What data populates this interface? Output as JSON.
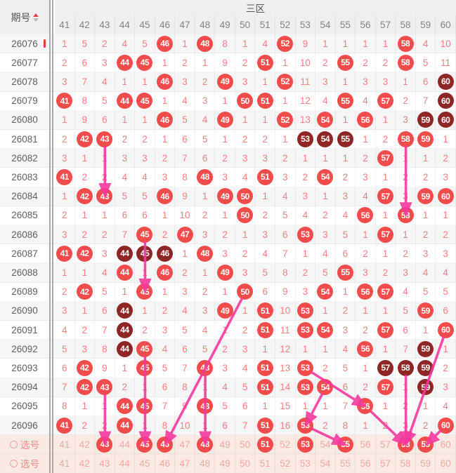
{
  "title": "三区",
  "left_header": "期号",
  "select_label": "选号",
  "columns": [
    41,
    42,
    43,
    44,
    45,
    46,
    47,
    48,
    49,
    50,
    51,
    52,
    53,
    54,
    55,
    56,
    57,
    58,
    59,
    60
  ],
  "legend": {
    "cell_encoding": "number = miss count, 'b' = drawn ball (bright red), 'd' = drawn ball (dark maroon), 0 = plain selectable number"
  },
  "colors": {
    "ball_bright": "#f24b4b",
    "ball_dark": "#8e2626",
    "miss_text": "#f58080",
    "select_row_bg": "#fbe9e3",
    "select_num_text": "#f3a7a2",
    "arrow": "#f5399f",
    "header_bg": "#efefef",
    "sort_active": "#e04040"
  },
  "chart_data": {
    "type": "table",
    "title": "三区",
    "x_columns": [
      41,
      42,
      43,
      44,
      45,
      46,
      47,
      48,
      49,
      50,
      51,
      52,
      53,
      54,
      55,
      56,
      57,
      58,
      59,
      60
    ],
    "rows": [
      {
        "period": "26076",
        "cells": [
          1,
          5,
          2,
          4,
          5,
          "b",
          1,
          "b",
          8,
          1,
          4,
          "b",
          9,
          1,
          1,
          1,
          1,
          "b",
          4,
          10
        ]
      },
      {
        "period": "26077",
        "cells": [
          2,
          6,
          3,
          "b",
          "b",
          1,
          2,
          1,
          9,
          2,
          "b",
          1,
          10,
          2,
          "b",
          2,
          2,
          "b",
          5,
          11
        ]
      },
      {
        "period": "26078",
        "cells": [
          3,
          7,
          4,
          1,
          1,
          "b",
          3,
          2,
          "b",
          3,
          1,
          "b",
          11,
          3,
          1,
          3,
          3,
          1,
          6,
          "d"
        ]
      },
      {
        "period": "26079",
        "cells": [
          "b",
          8,
          5,
          "b",
          "b",
          1,
          4,
          3,
          1,
          "b",
          "b",
          1,
          12,
          4,
          "b",
          4,
          "b",
          2,
          7,
          "d"
        ]
      },
      {
        "period": "26080",
        "cells": [
          1,
          9,
          6,
          1,
          1,
          "b",
          5,
          4,
          "b",
          1,
          1,
          "b",
          13,
          "b",
          1,
          "b",
          1,
          3,
          "d",
          "d"
        ]
      },
      {
        "period": "26081",
        "cells": [
          2,
          "b",
          "b",
          2,
          2,
          1,
          6,
          5,
          1,
          2,
          2,
          1,
          "d",
          "d",
          "d",
          1,
          2,
          "b",
          "b",
          1
        ]
      },
      {
        "period": "26082",
        "cells": [
          3,
          1,
          1,
          3,
          3,
          2,
          7,
          6,
          2,
          3,
          3,
          2,
          1,
          1,
          1,
          2,
          "b",
          1,
          1,
          2
        ]
      },
      {
        "period": "26083",
        "cells": [
          "b",
          2,
          2,
          4,
          4,
          3,
          8,
          "b",
          3,
          4,
          "b",
          3,
          2,
          "b",
          2,
          3,
          1,
          2,
          2,
          3
        ]
      },
      {
        "period": "26084",
        "cells": [
          1,
          "b",
          "b",
          5,
          5,
          "b",
          9,
          1,
          "b",
          "b",
          1,
          4,
          3,
          1,
          3,
          4,
          "b",
          3,
          "b",
          "b"
        ]
      },
      {
        "period": "26085",
        "cells": [
          2,
          1,
          1,
          6,
          6,
          1,
          10,
          2,
          1,
          "b",
          2,
          5,
          4,
          2,
          4,
          "b",
          1,
          "b",
          1,
          1
        ]
      },
      {
        "period": "26086",
        "cells": [
          3,
          2,
          2,
          7,
          "b",
          2,
          "b",
          3,
          2,
          1,
          3,
          6,
          "b",
          3,
          5,
          1,
          "b",
          1,
          2,
          2
        ]
      },
      {
        "period": "26087",
        "cells": [
          "b",
          "b",
          3,
          "d",
          "d",
          "d",
          1,
          "b",
          3,
          2,
          4,
          7,
          1,
          4,
          6,
          2,
          1,
          2,
          3,
          3
        ]
      },
      {
        "period": "26088",
        "cells": [
          1,
          1,
          4,
          "b",
          1,
          "b",
          2,
          1,
          "b",
          3,
          5,
          8,
          2,
          5,
          "b",
          3,
          2,
          3,
          4,
          4
        ]
      },
      {
        "period": "26089",
        "cells": [
          2,
          "b",
          5,
          1,
          "b",
          1,
          3,
          2,
          1,
          "b",
          6,
          9,
          3,
          "b",
          1,
          "b",
          "b",
          4,
          5,
          5
        ]
      },
      {
        "period": "26090",
        "cells": [
          3,
          1,
          6,
          "d",
          1,
          2,
          4,
          3,
          "b",
          1,
          "b",
          10,
          "b",
          1,
          2,
          1,
          1,
          5,
          "b",
          6
        ]
      },
      {
        "period": "26091",
        "cells": [
          4,
          2,
          7,
          "d",
          2,
          3,
          5,
          4,
          1,
          2,
          "b",
          11,
          "b",
          "b",
          3,
          2,
          "b",
          6,
          1,
          "b"
        ]
      },
      {
        "period": "26092",
        "cells": [
          5,
          3,
          8,
          "d",
          "b",
          4,
          6,
          5,
          2,
          3,
          1,
          12,
          1,
          1,
          4,
          "b",
          1,
          7,
          "d",
          1
        ]
      },
      {
        "period": "26093",
        "cells": [
          6,
          "b",
          9,
          1,
          "b",
          5,
          7,
          "b",
          3,
          4,
          "b",
          13,
          "b",
          2,
          5,
          1,
          "d",
          "d",
          "d",
          2
        ]
      },
      {
        "period": "26094",
        "cells": [
          7,
          "b",
          "b",
          2,
          1,
          6,
          8,
          1,
          4,
          5,
          "b",
          14,
          "b",
          "b",
          6,
          2,
          "b",
          1,
          "d",
          3
        ]
      },
      {
        "period": "26095",
        "cells": [
          8,
          1,
          1,
          "b",
          "b",
          7,
          9,
          "b",
          5,
          6,
          1,
          15,
          1,
          1,
          7,
          "b",
          1,
          2,
          1,
          4
        ]
      },
      {
        "period": "26096",
        "cells": [
          "b",
          2,
          2,
          "b",
          1,
          8,
          10,
          1,
          6,
          7,
          "b",
          16,
          "b",
          2,
          8,
          1,
          2,
          3,
          2,
          "b"
        ]
      }
    ],
    "select_rows": [
      {
        "cells": [
          0,
          0,
          "b",
          0,
          "b",
          "b",
          0,
          "b",
          0,
          0,
          "b",
          0,
          "b",
          0,
          "b",
          0,
          0,
          "b",
          "b",
          0
        ]
      },
      {
        "cells": [
          0,
          0,
          0,
          0,
          0,
          0,
          0,
          0,
          0,
          0,
          0,
          0,
          0,
          0,
          0,
          0,
          0,
          0,
          0,
          0
        ]
      }
    ],
    "arrows": [
      {
        "from": {
          "col": 43,
          "row": 5
        },
        "to": {
          "col": 43,
          "row": 8
        }
      },
      {
        "from": {
          "col": 58,
          "row": 5
        },
        "to": {
          "col": 58,
          "row": 9
        }
      },
      {
        "from": {
          "col": 45,
          "row": 10
        },
        "to": {
          "col": 45,
          "row": 13
        }
      },
      {
        "from": {
          "col": 50,
          "row": 13
        },
        "to": {
          "col": 46,
          "row": 21
        }
      },
      {
        "from": {
          "col": 45,
          "row": 16
        },
        "to": {
          "col": 45,
          "row": 21
        }
      },
      {
        "from": {
          "col": 48,
          "row": 17
        },
        "to": {
          "col": 48,
          "row": 21
        }
      },
      {
        "from": {
          "col": 53,
          "row": 17
        },
        "to": {
          "col": 56,
          "row": 19
        }
      },
      {
        "from": {
          "col": 56,
          "row": 19
        },
        "to": {
          "col": 58,
          "row": 21
        }
      },
      {
        "from": {
          "col": 58,
          "row": 17
        },
        "to": {
          "col": 58,
          "row": 21
        }
      },
      {
        "from": {
          "col": 60,
          "row": 15
        },
        "to": {
          "col": 58,
          "row": 21
        }
      },
      {
        "from": {
          "col": 54,
          "row": 18
        },
        "to": {
          "col": 53,
          "row": 20
        }
      },
      {
        "from": {
          "col": 53,
          "row": 20
        },
        "to": {
          "col": 55,
          "row": 21
        }
      },
      {
        "from": {
          "col": 43,
          "row": 18
        },
        "to": {
          "col": 43,
          "row": 21
        }
      },
      {
        "from": {
          "col": 60,
          "row": 20
        },
        "to": {
          "col": 59,
          "row": 21
        }
      }
    ]
  }
}
